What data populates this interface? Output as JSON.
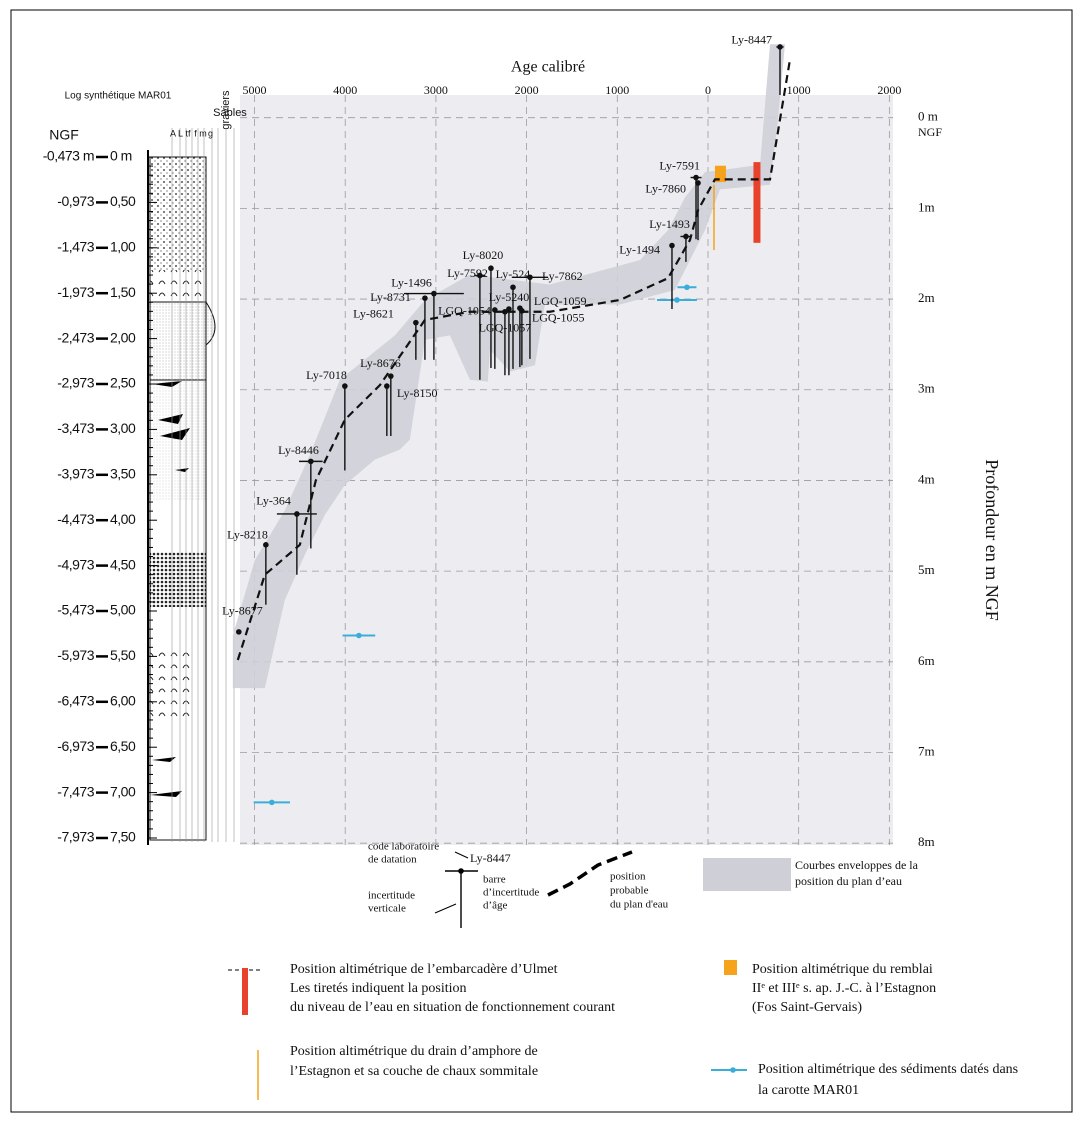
{
  "chart_data": {
    "type": "scatter",
    "title": "Age calibré",
    "y_title": "Profondeur en m NGF",
    "y_unit": "NGF",
    "xlim": [
      -5160,
      2040
    ],
    "ylim": [
      -0.25,
      8.02
    ],
    "xticks": [
      {
        "value": -5000,
        "label": "5000"
      },
      {
        "value": -4000,
        "label": "4000"
      },
      {
        "value": -3000,
        "label": "3000"
      },
      {
        "value": -2000,
        "label": "2000"
      },
      {
        "value": -1000,
        "label": "1000"
      },
      0,
      1000,
      2000
    ],
    "yticks": [
      {
        "value": 0,
        "label": "0 m"
      },
      {
        "value": 1,
        "label": "1m"
      },
      {
        "value": 2,
        "label": "2m"
      },
      {
        "value": 3,
        "label": "3m"
      },
      {
        "value": 4,
        "label": "4m"
      },
      {
        "value": 5,
        "label": "5m"
      },
      {
        "value": 6,
        "label": "6m"
      },
      {
        "value": 7,
        "label": "7m"
      },
      {
        "value": 8,
        "label": "8m"
      }
    ],
    "grid": true,
    "samples": {
      "color": "#111111",
      "labels": [
        "Ly-8447",
        "Ly-7591",
        "Ly-7860",
        "Ly-1493",
        "Ly-1494",
        "Ly-8020",
        "Ly-7592",
        "Ly-524",
        "Ly-7862",
        "Ly-1496",
        "Ly-8731",
        "Ly-5240",
        "LGQ-1054",
        "LGQ-1057",
        "LGQ-1059",
        "LGQ-1055",
        "Ly-8621",
        "Ly-8676",
        "Ly-8150",
        "Ly-7018",
        "Ly-8446",
        "Ly-364",
        "Ly-8218",
        "Ly-8677"
      ],
      "age": [
        794,
        -132,
        -110,
        -243,
        -397,
        -2393,
        -2515,
        -2150,
        -1963,
        -3022,
        -3121,
        -2195,
        -2350,
        -2239,
        -2074,
        -2052,
        -3221,
        -3497,
        -3541,
        -4004,
        -4379,
        -4533,
        -4875,
        -5173
      ],
      "depth": [
        -0.78,
        0.66,
        0.72,
        1.31,
        1.41,
        1.66,
        1.74,
        1.87,
        1.76,
        1.94,
        1.99,
        2.11,
        2.12,
        2.14,
        2.1,
        2.13,
        2.26,
        2.85,
        2.96,
        2.96,
        3.79,
        4.37,
        4.71,
        5.67
      ],
      "age_err": [
        40,
        60,
        0,
        60,
        0,
        0,
        60,
        0,
        200,
        330,
        0,
        0,
        0,
        0,
        0,
        0,
        0,
        0,
        0,
        0,
        130,
        220,
        0,
        0
      ],
      "depth_err": [
        0.53,
        0.68,
        0.63,
        0.28,
        0.7,
        1.1,
        1.15,
        0.9,
        0.9,
        0.73,
        0.68,
        0.73,
        0.65,
        0.7,
        0.65,
        0.6,
        0.41,
        0.66,
        0.55,
        0.93,
        0.96,
        0.67,
        0.66,
        0
      ]
    },
    "water_level": {
      "color": "#111111",
      "x": [
        -5184,
        -4886,
        -4500,
        -4324,
        -4004,
        -3618,
        -3121,
        -2625,
        -1743,
        -971,
        -441,
        -199,
        -110,
        77,
        684,
        904
      ],
      "depth": [
        5.98,
        5.04,
        4.71,
        4.0,
        3.33,
        2.95,
        2.23,
        2.14,
        2.14,
        2.01,
        1.77,
        1.35,
        1.02,
        0.68,
        0.68,
        -0.64
      ]
    },
    "envelope": {
      "color": "#cfcfd8",
      "x": [
        -5239,
        -5239,
        -4997,
        -4666,
        -4390,
        -4059,
        -3452,
        -3121,
        -2625,
        -1743,
        -750,
        -441,
        -254,
        -33,
        574,
        684,
        849,
        772,
        684,
        132,
        -33,
        -364,
        -971,
        -1798,
        -1908,
        -2184,
        -2405,
        -2427,
        -2625,
        -2846,
        -3121,
        -3287,
        -3397,
        -3673,
        -4004,
        -4224,
        -4445,
        -4666,
        -4886
      ],
      "depth": [
        6.29,
        5.71,
        4.88,
        4.33,
        3.72,
        2.89,
        2.4,
        2.01,
        1.73,
        1.84,
        1.57,
        1.24,
        0.88,
        0.6,
        0.52,
        -0.81,
        -0.81,
        0.02,
        0.74,
        0.79,
        1.24,
        1.9,
        2.06,
        2.06,
        2.73,
        2.8,
        2.56,
        2.91,
        2.89,
        2.4,
        2.45,
        3.55,
        3.66,
        3.77,
        4.05,
        4.38,
        4.82,
        5.32,
        6.29
      ]
    },
    "embarcadere": {
      "color": "#e8412c",
      "x": 540,
      "depth": [
        0.49,
        1.38
      ]
    },
    "remblai": {
      "color": "#f5a31a",
      "x": [
        77,
        198
      ],
      "depth": [
        0.53,
        0.71
      ]
    },
    "drain": {
      "color": "#f5a31a",
      "x": 66,
      "depth": [
        0.74,
        1.46
      ]
    },
    "sediments": {
      "color": "#3aaed8",
      "age": [
        -232,
        -342,
        -3849,
        -4809
      ],
      "depth": [
        1.87,
        2.01,
        5.71,
        7.55
      ],
      "age_err": [
        105,
        220,
        180,
        200
      ]
    },
    "log": {
      "title": "Log synthétique MAR01",
      "axis_title": "NGF",
      "sand_label": "Sables",
      "gravel_label": "graviers",
      "columns": [
        "A",
        "L",
        "tf",
        "f",
        "m",
        "g"
      ],
      "ylim": [
        0,
        7.5
      ],
      "ticks": [
        {
          "value": 0,
          "label": "0 m"
        },
        {
          "value": 0.5,
          "label": "0,50"
        },
        {
          "value": 1,
          "label": "1,00"
        },
        {
          "value": 1.5,
          "label": "1,50"
        },
        {
          "value": 2,
          "label": "2,00"
        },
        {
          "value": 2.5,
          "label": "2,50"
        },
        {
          "value": 3,
          "label": "3,00"
        },
        {
          "value": 3.5,
          "label": "3,50"
        },
        {
          "value": 4,
          "label": "4,00"
        },
        {
          "value": 4.5,
          "label": "4,50"
        },
        {
          "value": 5,
          "label": "5,00"
        },
        {
          "value": 5.5,
          "label": "5,50"
        },
        {
          "value": 6,
          "label": "6,00"
        },
        {
          "value": 6.5,
          "label": "6,50"
        },
        {
          "value": 7,
          "label": "7,00"
        },
        {
          "value": 7.5,
          "label": "7,50"
        }
      ],
      "ngf_labels": [
        "-0,473 m",
        "-0,973",
        "-1,473",
        "-1,973",
        "-2,473",
        "-2,973",
        "-3,473",
        "-3,973",
        "-4,473",
        "-4,973",
        "-5,473",
        "-5,973",
        "-6,473",
        "-6,973",
        "-7,473",
        "-7,973"
      ]
    },
    "legend": {
      "sample_code": [
        "code laboratoire",
        "de datation"
      ],
      "sample_label": "Ly-8447",
      "age_bar": [
        "barre",
        "d’incertitude",
        "d’âge"
      ],
      "vertical": [
        "incertitude",
        "verticale"
      ],
      "water": [
        "position",
        "probable",
        "du plan d'eau"
      ],
      "envelope": [
        "Courbes enveloppes de la",
        "position du plan d’eau"
      ],
      "embarcadere": [
        "Position altimétrique de l’embarcadère d’Ulmet",
        "Les tiretés indiquent la position",
        "du niveau de l’eau en situation de fonctionnement courant"
      ],
      "remblai": [
        "Position altimétrique du remblai",
        "IIᵉ et IIIᵉ s. ap. J.-C. à l’Estagnon",
        "(Fos Saint-Gervais)"
      ],
      "drain": [
        "Position altimétrique du drain d’amphore de",
        "l’Estagnon et sa couche de chaux sommitale"
      ],
      "sediments": [
        "Position altimétrique des sédiments datés dans",
        "la carotte MAR01"
      ]
    }
  }
}
